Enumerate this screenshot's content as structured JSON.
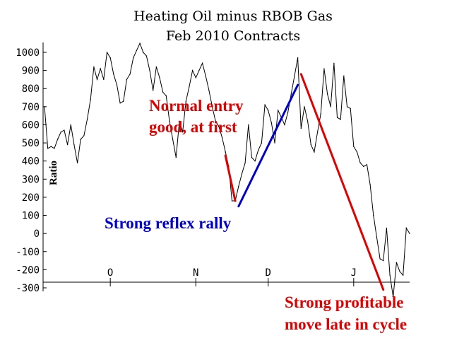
{
  "chart_data": {
    "type": "line",
    "title": "Heating Oil minus RBOB Gas",
    "subtitle": "Feb 2010 Contracts",
    "ylabel": "Ratio",
    "xlabel": "",
    "ylim": [
      -300,
      1000
    ],
    "yticks": [
      1000,
      900,
      800,
      700,
      600,
      500,
      400,
      300,
      200,
      100,
      0,
      -100,
      -200,
      -300
    ],
    "xticks": [
      "O",
      "N",
      "D",
      "J"
    ],
    "grid": false,
    "series": [
      {
        "values": [
          700,
          470,
          480,
          470,
          520,
          560,
          570,
          490,
          600,
          490,
          390,
          520,
          540,
          630,
          740,
          920,
          850,
          910,
          850,
          1000,
          970,
          880,
          820,
          720,
          730,
          850,
          880,
          970,
          1010,
          1050,
          1000,
          980,
          900,
          790,
          920,
          860,
          780,
          760,
          620,
          520,
          420,
          620,
          560,
          730,
          810,
          900,
          860,
          900,
          940,
          870,
          790,
          700,
          620,
          590,
          530,
          450,
          370,
          180,
          180,
          260,
          330,
          390,
          600,
          420,
          400,
          460,
          500,
          710,
          680,
          610,
          500,
          680,
          640,
          600,
          670,
          770,
          870,
          970,
          580,
          700,
          620,
          490,
          450,
          560,
          660,
          910,
          770,
          700,
          940,
          640,
          630,
          870,
          700,
          690,
          480,
          450,
          390,
          370,
          380,
          270,
          100,
          -20,
          -140,
          -150,
          30,
          -230,
          -350,
          -160,
          -210,
          -230,
          30,
          0
        ]
      }
    ],
    "annotations": [
      {
        "text_lines": [
          "Normal entry",
          "good, at first"
        ],
        "color": "#e00000"
      },
      {
        "text_lines": [
          "Strong reflex rally"
        ],
        "color": "#0000cc"
      },
      {
        "text_lines": [
          "Strong profitable",
          "move late in cycle"
        ],
        "color": "#e00000"
      }
    ],
    "trend_lines": [
      {
        "color": "#e00000",
        "from_index": 55,
        "from_value": 430,
        "to_index": 58,
        "to_value": 180
      },
      {
        "color": "#0000cc",
        "from_index": 59,
        "from_value": 150,
        "to_index": 77,
        "to_value": 820
      },
      {
        "color": "#e00000",
        "from_index": 78,
        "from_value": 880,
        "to_index": 103,
        "to_value": -310
      }
    ]
  }
}
